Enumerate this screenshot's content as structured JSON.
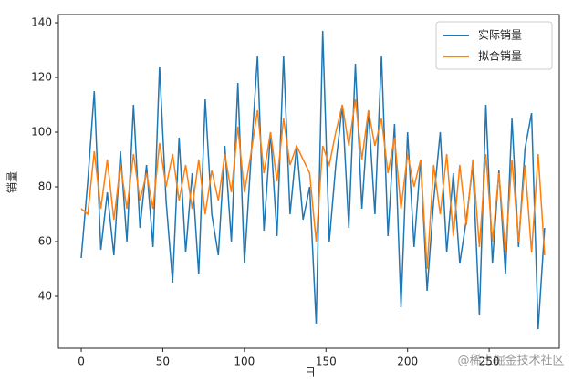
{
  "chart_data": {
    "type": "line",
    "x_label": "日",
    "y_label": "销量",
    "watermark": "@稀土掘金技术社区",
    "x": [
      0,
      4,
      8,
      12,
      16,
      20,
      24,
      28,
      32,
      36,
      40,
      44,
      48,
      52,
      56,
      60,
      64,
      68,
      72,
      76,
      80,
      84,
      88,
      92,
      96,
      100,
      104,
      108,
      112,
      116,
      120,
      124,
      128,
      132,
      136,
      140,
      144,
      148,
      152,
      156,
      160,
      164,
      168,
      172,
      176,
      180,
      184,
      188,
      192,
      196,
      200,
      204,
      208,
      212,
      216,
      220,
      224,
      228,
      232,
      236,
      240,
      244,
      248,
      252,
      256,
      260,
      264,
      268,
      272,
      276,
      280,
      284
    ],
    "series": [
      {
        "name": "实际销量",
        "color": "#1f77b4",
        "values": [
          54,
          82,
          115,
          57,
          78,
          55,
          93,
          60,
          110,
          65,
          88,
          58,
          124,
          75,
          45,
          98,
          56,
          85,
          48,
          112,
          70,
          55,
          95,
          60,
          118,
          52,
          90,
          128,
          64,
          100,
          62,
          128,
          70,
          95,
          68,
          80,
          30,
          137,
          60,
          88,
          110,
          65,
          125,
          72,
          108,
          70,
          128,
          62,
          103,
          36,
          100,
          58,
          90,
          42,
          75,
          100,
          56,
          85,
          52,
          68,
          88,
          33,
          110,
          52,
          86,
          48,
          105,
          58,
          94,
          107,
          28,
          65
        ]
      },
      {
        "name": "拟合销量",
        "color": "#ff7f0e",
        "values": [
          72,
          70,
          93,
          72,
          90,
          68,
          88,
          72,
          92,
          75,
          85,
          72,
          96,
          80,
          92,
          75,
          88,
          72,
          90,
          70,
          86,
          75,
          92,
          78,
          102,
          78,
          92,
          108,
          85,
          100,
          82,
          105,
          88,
          95,
          90,
          85,
          60,
          95,
          88,
          100,
          110,
          95,
          112,
          90,
          108,
          95,
          105,
          85,
          98,
          72,
          92,
          80,
          90,
          50,
          88,
          70,
          92,
          62,
          88,
          66,
          90,
          58,
          92,
          60,
          85,
          56,
          90,
          60,
          88,
          56,
          92,
          55
        ]
      }
    ],
    "xlim": [
      -14,
      293
    ],
    "ylim": [
      21,
      143
    ],
    "xticks": [
      0,
      50,
      100,
      150,
      200,
      250
    ],
    "yticks": [
      40,
      60,
      80,
      100,
      120,
      140
    ],
    "legend": "upper right"
  }
}
